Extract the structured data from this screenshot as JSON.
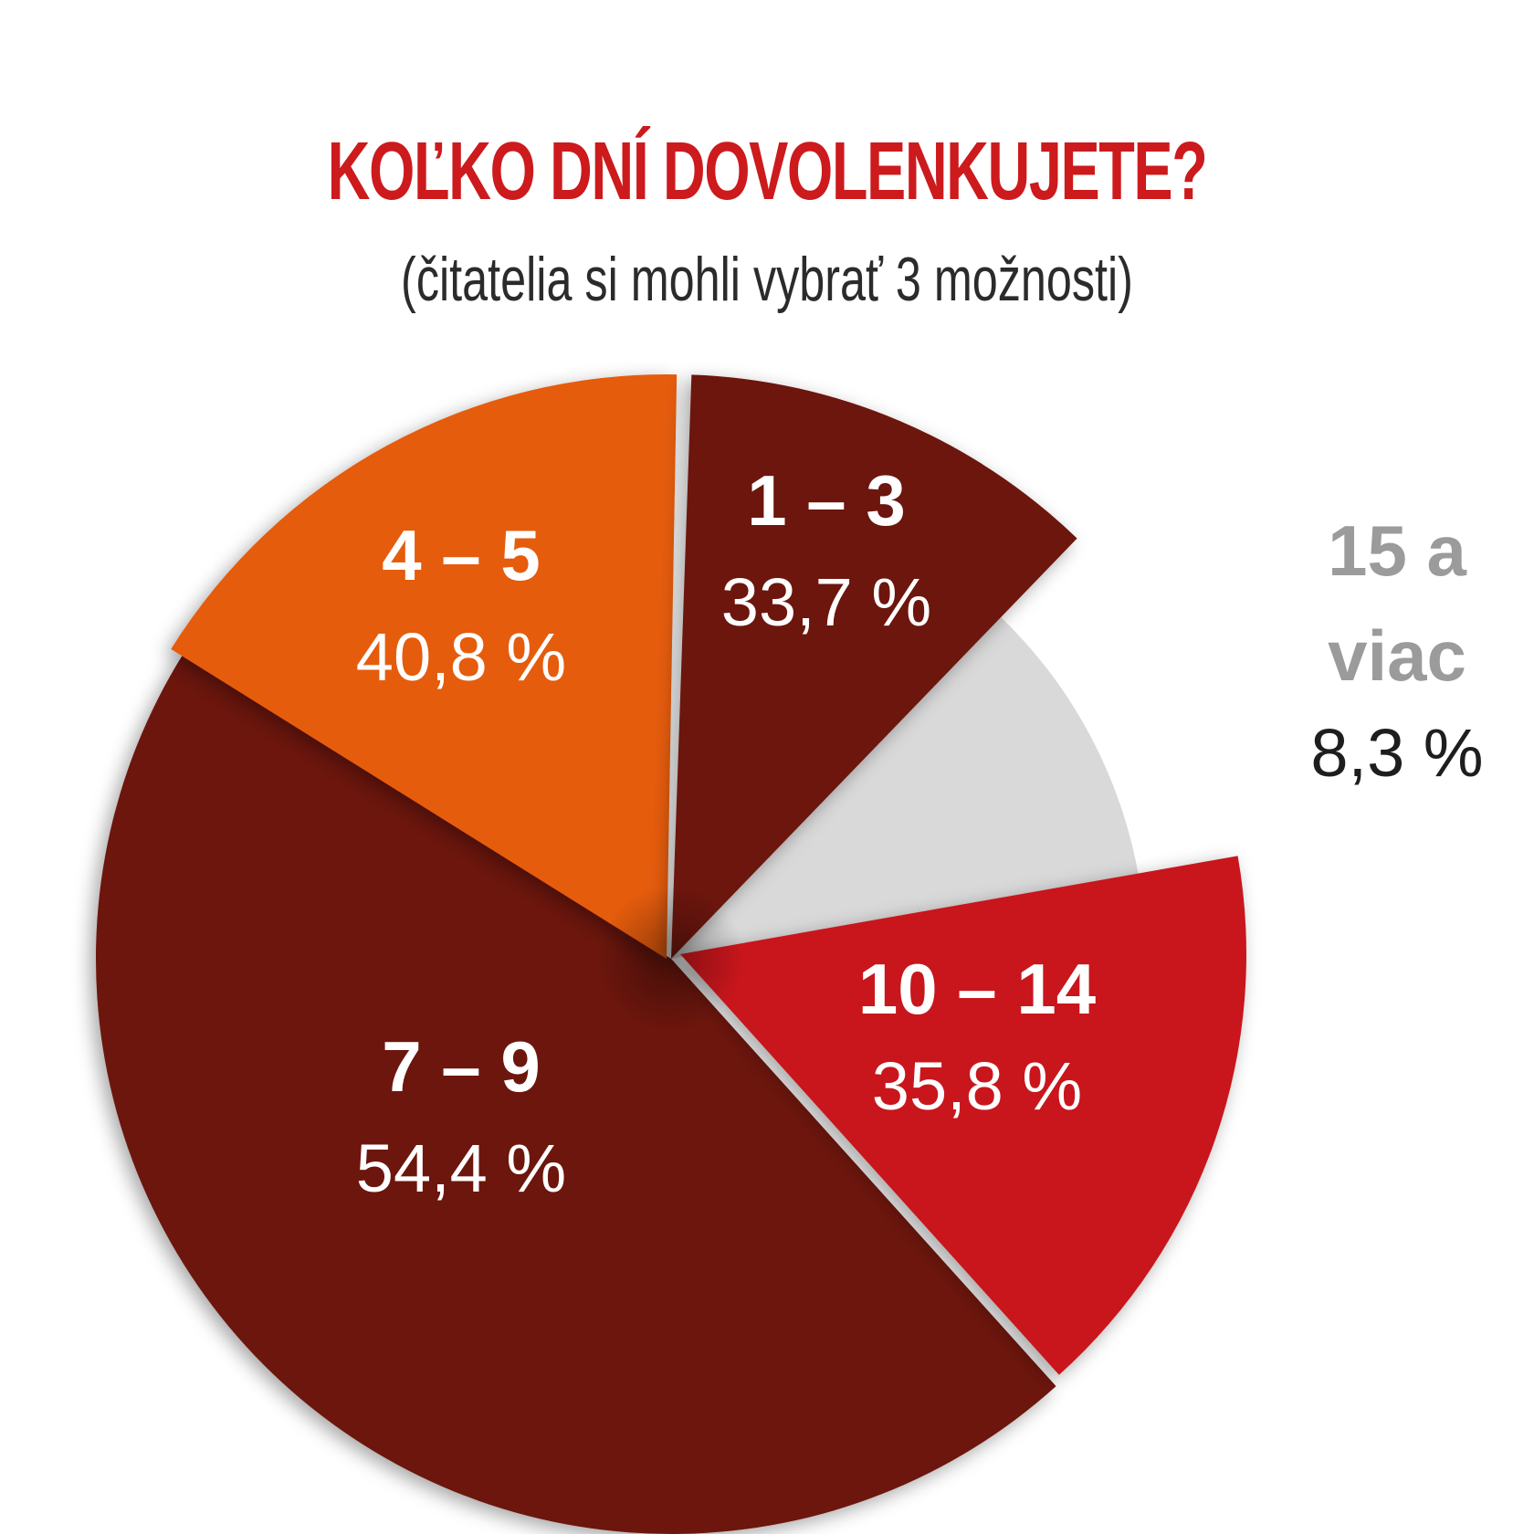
{
  "chart_data": {
    "type": "pie",
    "title": "KOĽKO DNÍ DOVOLENKUJETE?",
    "subtitle": "(čitatelia si mohli vybrať 3 možnosti)",
    "slices": [
      {
        "label": "1 – 3",
        "value_label": "33,7 %",
        "value": 33.7,
        "color": "#6c150c",
        "label_color": "#ffffff",
        "pct_color": "#ffffff"
      },
      {
        "label": "15 a viac",
        "label_lines": [
          "15 a",
          "viac"
        ],
        "value_label": "8,3 %",
        "value": 8.3,
        "color": "#d9d9d9",
        "label_color": "#9b9b9b",
        "pct_color": "#1e1e1e"
      },
      {
        "label": "10 – 14",
        "value_label": "35,8 %",
        "value": 35.8,
        "color": "#c8171b",
        "label_color": "#ffffff",
        "pct_color": "#ffffff"
      },
      {
        "label": "7 – 9",
        "value_label": "54,4 %",
        "value": 54.4,
        "color": "#6c150c",
        "label_color": "#ffffff",
        "pct_color": "#ffffff"
      },
      {
        "label": "4 – 5",
        "value_label": "40,8 %",
        "value": 40.8,
        "color": "#e55c0d",
        "label_color": "#ffffff",
        "pct_color": "#ffffff"
      }
    ],
    "legend": "none"
  }
}
